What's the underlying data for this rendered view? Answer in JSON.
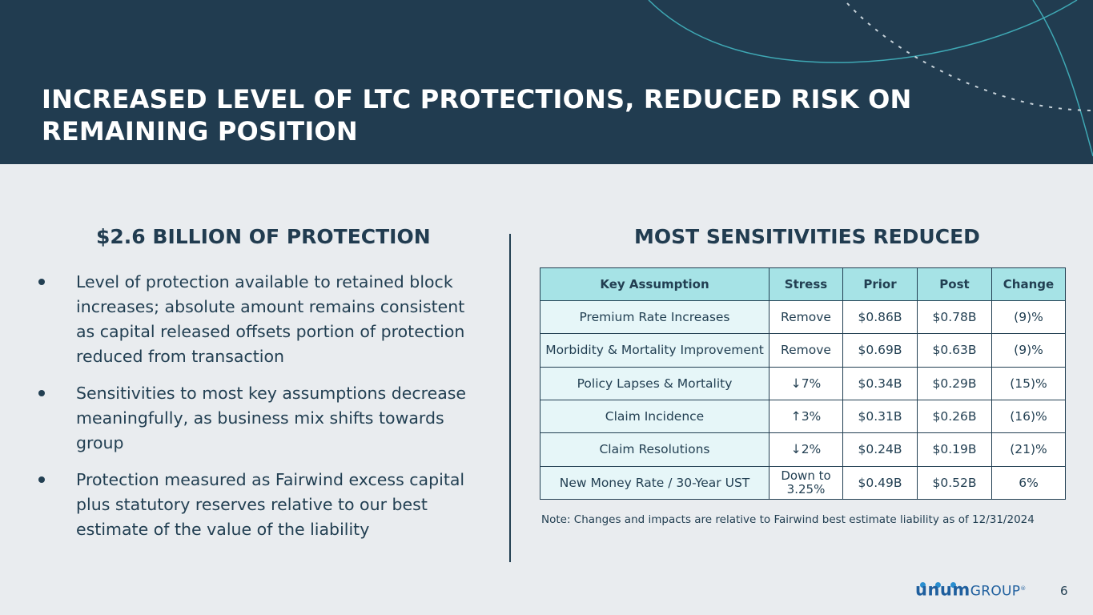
{
  "header": {
    "title_line1": "INCREASED LEVEL OF LTC PROTECTIONS, REDUCED RISK ON",
    "title_line2": "REMAINING POSITION"
  },
  "left": {
    "heading": "$2.6 BILLION OF PROTECTION",
    "bullets": [
      "Level of protection available to retained block increases; absolute amount remains consistent as capital released offsets portion of protection reduced from transaction",
      "Sensitivities to most key assumptions decrease meaningfully, as business mix shifts towards group",
      "Protection measured as Fairwind excess capital plus statutory reserves relative to our best estimate of the value of the liability"
    ]
  },
  "right": {
    "heading": "MOST SENSITIVITIES REDUCED",
    "table": {
      "headers": [
        "Key Assumption",
        "Stress",
        "Prior",
        "Post",
        "Change"
      ],
      "rows": [
        [
          "Premium Rate Increases",
          "Remove",
          "$0.86B",
          "$0.78B",
          "(9)%"
        ],
        [
          "Morbidity & Mortality Improvement",
          "Remove",
          "$0.69B",
          "$0.63B",
          "(9)%"
        ],
        [
          "Policy Lapses & Mortality",
          "↓7%",
          "$0.34B",
          "$0.29B",
          "(15)%"
        ],
        [
          "Claim Incidence",
          "↑3%",
          "$0.31B",
          "$0.26B",
          "(16)%"
        ],
        [
          "Claim Resolutions",
          "↓2%",
          "$0.24B",
          "$0.19B",
          "(21)%"
        ],
        [
          "New Money Rate / 30-Year UST",
          "Down to 3.25%",
          "$0.49B",
          "$0.52B",
          "6%"
        ]
      ]
    },
    "note": "Note:  Changes and impacts are relative to Fairwind best estimate liability as of 12/31/2024"
  },
  "footer": {
    "logo_brand": "unum",
    "logo_group": "GROUP",
    "logo_mark": "®",
    "page_number": "6"
  },
  "colors": {
    "header_bg": "#213c50",
    "page_bg": "#e9ecef",
    "table_header_bg": "#a6e3e6",
    "table_first_col_bg": "#e6f6f8",
    "accent_line": "#3fa9b5",
    "brand_blue": "#1f5f9e"
  }
}
